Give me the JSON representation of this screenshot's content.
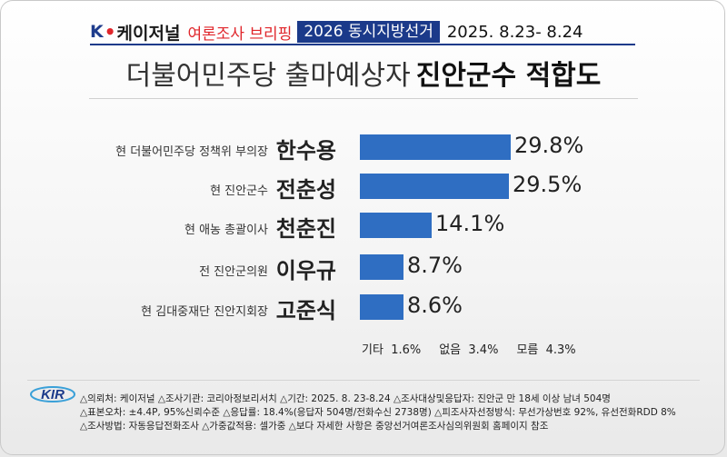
{
  "header": {
    "brand_k": "K",
    "brand_dot": "•",
    "brand_rest": "케이저널",
    "briefing": "여론조사 브리핑",
    "tag": "2026 동시지방선거",
    "dates": "2025. 8.23- 8.24"
  },
  "title": {
    "normal": "더불어민주당 출마예상자",
    "bold": "진안군수 적합도"
  },
  "chart_data": {
    "type": "bar",
    "orientation": "horizontal",
    "categories": [
      "한수용",
      "전춘성",
      "천춘진",
      "이우규",
      "고준식"
    ],
    "descriptions": [
      "현 더불어민주당 정책위 부의장",
      "현 진안군수",
      "현 애농 총괄이사",
      "전 진안군의원",
      "현 김대중재단 진안지회장"
    ],
    "values": [
      29.8,
      29.5,
      14.1,
      8.7,
      8.6
    ],
    "value_labels": [
      "29.8%",
      "29.5%",
      "14.1%",
      "8.7%",
      "8.6%"
    ],
    "bar_color": "#2f6ec2",
    "extras": [
      {
        "label": "기타",
        "value": "1.6%"
      },
      {
        "label": "없음",
        "value": "3.4%"
      },
      {
        "label": "모름",
        "value": "4.3%"
      }
    ]
  },
  "footer": {
    "logo_text": "KIR",
    "lines": [
      "△의뢰처: 케이저널 △조사기관: 코리아정보리서치 △기간: 2025. 8. 23-8.24 △조사대상및응답자: 진안군 만 18세 이상 남녀 504명",
      "△표본오차: ±4.4P, 95%신뢰수준 △응답률: 18.4%(응답자 504명/전화수신 2738명) △피조사자선정방식: 무선가상번호 92%, 유선전화RDD 8%",
      "△조사방법: 자동응답전화조사 △가중값적용: 셀가중 △보다 자세한 사항은 중앙선거여론조사심의위원회 홈페이지 참조"
    ]
  }
}
